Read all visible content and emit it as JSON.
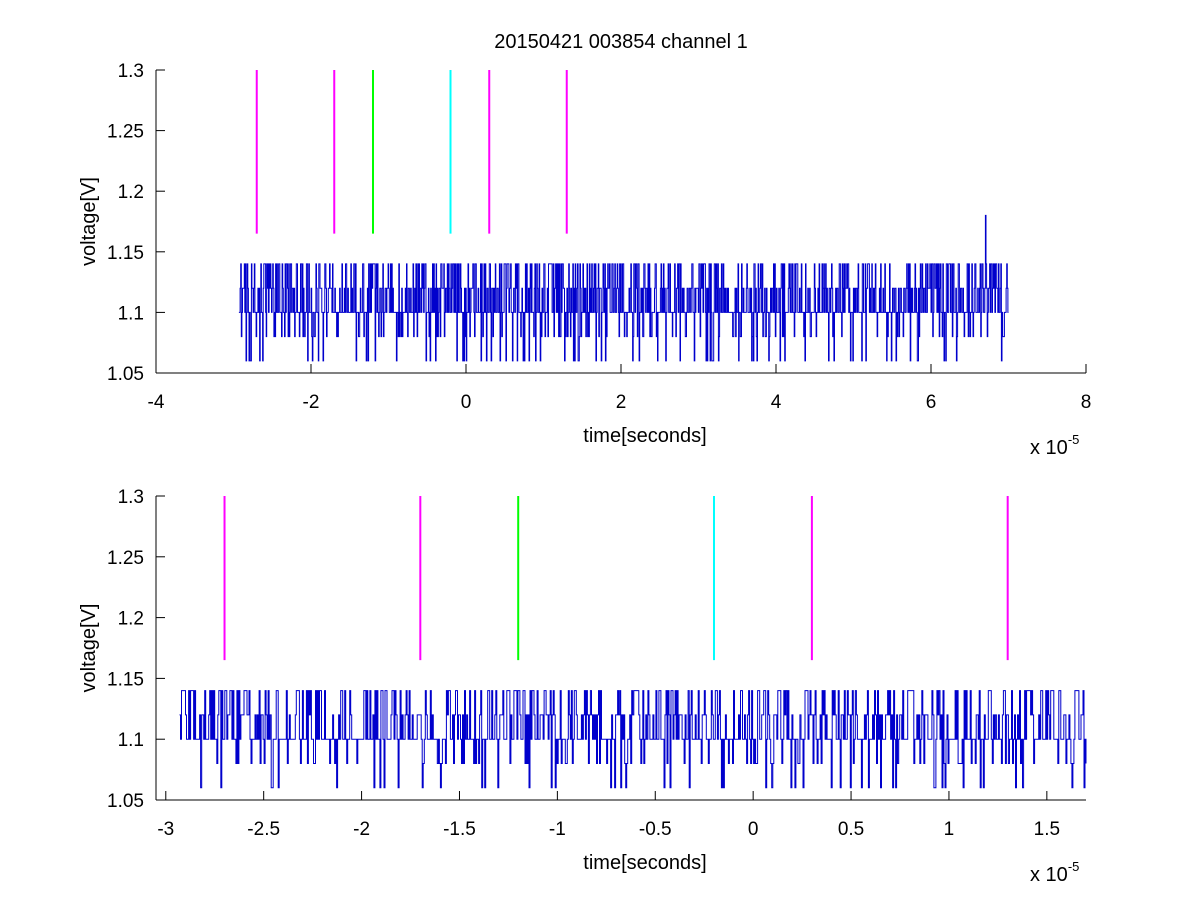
{
  "chart_data": [
    {
      "type": "line",
      "title": "20150421 003854 channel 1",
      "xlabel": "time[seconds]",
      "ylabel": "voltage[V]",
      "x_multiplier_label": "x 10",
      "x_multiplier_exponent": "-5",
      "xlim": [
        -4,
        8
      ],
      "ylim": [
        1.05,
        1.3
      ],
      "xticks": [
        -4,
        -2,
        0,
        2,
        4,
        6,
        8
      ],
      "xtick_labels": [
        "-4",
        "-2",
        "0",
        "2",
        "4",
        "6",
        "8"
      ],
      "yticks": [
        1.05,
        1.1,
        1.15,
        1.2,
        1.25,
        1.3
      ],
      "ytick_labels": [
        "1.05",
        "1.1",
        "1.15",
        "1.2",
        "1.25",
        "1.3"
      ],
      "grid": false,
      "signal": {
        "color": "#0000cc",
        "x_start": -2.93,
        "x_end": 7.0,
        "levels": [
          1.06,
          1.08,
          1.1,
          1.12,
          1.14
        ],
        "baseline": 1.1,
        "spike": {
          "x": 6.7,
          "y": 1.18
        }
      },
      "markers": [
        {
          "x": -2.7,
          "y_range": [
            1.165,
            1.3
          ],
          "color": "#ff00ff"
        },
        {
          "x": -1.7,
          "y_range": [
            1.165,
            1.3
          ],
          "color": "#ff00ff"
        },
        {
          "x": -1.2,
          "y_range": [
            1.165,
            1.3
          ],
          "color": "#00ff00"
        },
        {
          "x": -0.2,
          "y_range": [
            1.165,
            1.3
          ],
          "color": "#00ffff"
        },
        {
          "x": 0.3,
          "y_range": [
            1.165,
            1.3
          ],
          "color": "#ff00ff"
        },
        {
          "x": 1.3,
          "y_range": [
            1.165,
            1.3
          ],
          "color": "#ff00ff"
        }
      ]
    },
    {
      "type": "line",
      "title": "",
      "xlabel": "time[seconds]",
      "ylabel": "voltage[V]",
      "x_multiplier_label": "x 10",
      "x_multiplier_exponent": "-5",
      "xlim": [
        -3.05,
        1.7
      ],
      "ylim": [
        1.05,
        1.3
      ],
      "xticks": [
        -3,
        -2.5,
        -2,
        -1.5,
        -1,
        -0.5,
        0,
        0.5,
        1,
        1.5
      ],
      "xtick_labels": [
        "-3",
        "-2.5",
        "-2",
        "-1.5",
        "-1",
        "-0.5",
        "0",
        "0.5",
        "1",
        "1.5"
      ],
      "yticks": [
        1.05,
        1.1,
        1.15,
        1.2,
        1.25,
        1.3
      ],
      "ytick_labels": [
        "1.05",
        "1.1",
        "1.15",
        "1.2",
        "1.25",
        "1.3"
      ],
      "grid": false,
      "signal": {
        "color": "#0000cc",
        "x_start": -2.93,
        "x_end": 1.7,
        "levels": [
          1.06,
          1.08,
          1.1,
          1.12,
          1.14
        ],
        "baseline": 1.1
      },
      "markers": [
        {
          "x": -2.7,
          "y_range": [
            1.165,
            1.3
          ],
          "color": "#ff00ff"
        },
        {
          "x": -1.7,
          "y_range": [
            1.165,
            1.3
          ],
          "color": "#ff00ff"
        },
        {
          "x": -1.2,
          "y_range": [
            1.165,
            1.3
          ],
          "color": "#00ff00"
        },
        {
          "x": -0.2,
          "y_range": [
            1.165,
            1.3
          ],
          "color": "#00ffff"
        },
        {
          "x": 0.3,
          "y_range": [
            1.165,
            1.3
          ],
          "color": "#ff00ff"
        },
        {
          "x": 1.3,
          "y_range": [
            1.165,
            1.3
          ],
          "color": "#ff00ff"
        }
      ]
    }
  ]
}
